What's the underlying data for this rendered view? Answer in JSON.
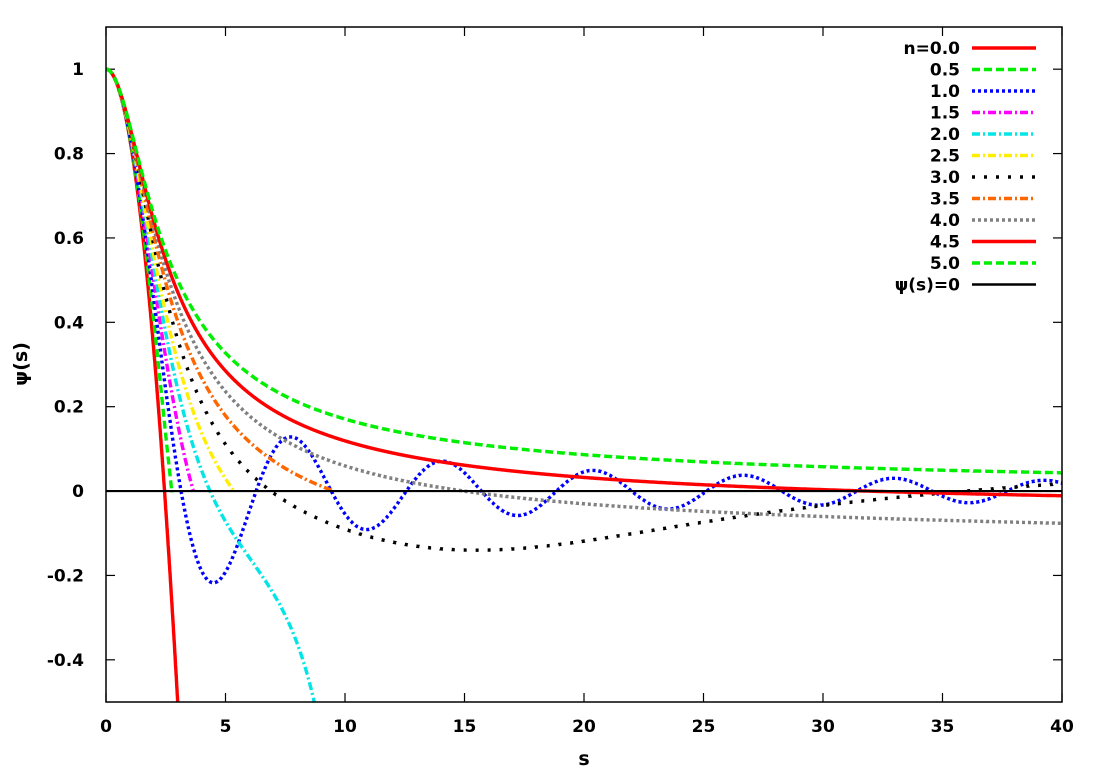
{
  "chart_data": {
    "type": "line",
    "title": "",
    "xlabel": "s",
    "ylabel": "ψ(s)",
    "xlim": [
      0,
      40
    ],
    "ylim": [
      -0.5,
      1.1
    ],
    "xticks": [
      0,
      5,
      10,
      15,
      20,
      25,
      30,
      35,
      40
    ],
    "yticks": [
      -0.4,
      -0.2,
      0,
      0.2,
      0.4,
      0.6,
      0.8,
      1
    ],
    "xtick_labels": [
      "0",
      "5",
      "10",
      "15",
      "20",
      "25",
      "30",
      "35",
      "40"
    ],
    "ytick_labels": [
      "-0.4",
      "-0.2",
      "0",
      "0.2",
      "0.4",
      "0.6",
      "0.8",
      "1"
    ],
    "legend_position": "top-right",
    "series": [
      {
        "name": "n=0.0",
        "n": 0.0,
        "color": "#ff0000",
        "dash": "solid"
      },
      {
        "name": "0.5",
        "n": 0.5,
        "color": "#00ee00",
        "dash": "dashed"
      },
      {
        "name": "1.0",
        "n": 1.0,
        "color": "#0000ff",
        "dash": "dotted"
      },
      {
        "name": "1.5",
        "n": 1.5,
        "color": "#ff00ff",
        "dash": "dashdot"
      },
      {
        "name": "2.0",
        "n": 2.0,
        "color": "#00e5e5",
        "dash": "dashdot"
      },
      {
        "name": "2.5",
        "n": 2.5,
        "color": "#ffee00",
        "dash": "dashdot"
      },
      {
        "name": "3.0",
        "n": 3.0,
        "color": "#000000",
        "dash": "sparse"
      },
      {
        "name": "3.5",
        "n": 3.5,
        "color": "#ff6600",
        "dash": "dashdot"
      },
      {
        "name": "4.0",
        "n": 4.0,
        "color": "#808080",
        "dash": "dotted"
      },
      {
        "name": "4.5",
        "n": 4.5,
        "color": "#ff0000",
        "dash": "solid"
      },
      {
        "name": "5.0",
        "n": 5.0,
        "color": "#00ee00",
        "dash": "dashed"
      },
      {
        "name": "ψ(s)=0",
        "n": null,
        "color": "#000000",
        "dash": "solid"
      }
    ]
  }
}
